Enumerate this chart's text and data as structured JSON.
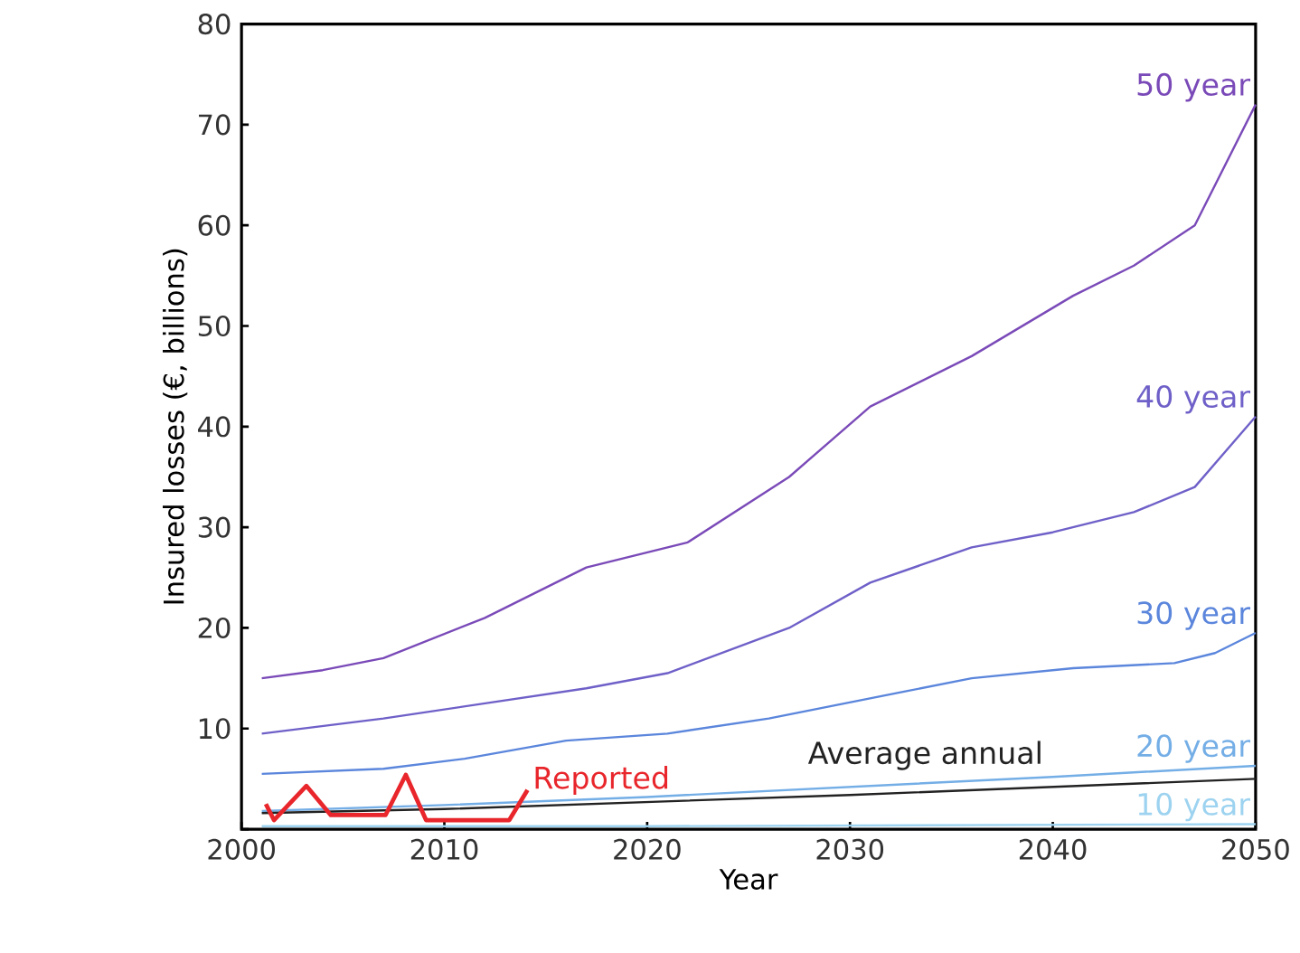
{
  "chart_data": {
    "type": "line",
    "xlabel": "Year",
    "ylabel": "Insured losses (€, billions)",
    "xlim": [
      2000,
      2050
    ],
    "xticks": [
      2000,
      2010,
      2020,
      2030,
      2040,
      2050
    ],
    "ylim": [
      0,
      80
    ],
    "yticks": [
      {
        "value": 0,
        "label": null
      },
      10,
      20,
      30,
      40,
      50,
      60,
      70,
      80
    ],
    "grid": false,
    "marker": "none",
    "line_style": "solid",
    "series": [
      {
        "name": "50 year",
        "color": "#7a4ab8",
        "x": [
          2001,
          2004,
          2007,
          2012,
          2017,
          2022,
          2027,
          2031,
          2036,
          2041,
          2044,
          2047,
          2050
        ],
        "values": [
          15,
          15.8,
          17,
          21,
          26,
          28.5,
          35,
          42,
          47,
          53,
          56,
          60,
          72
        ]
      },
      {
        "name": "40 year",
        "color": "#6e60c8",
        "x": [
          2001,
          2007,
          2012,
          2017,
          2021,
          2027,
          2031,
          2036,
          2040,
          2044,
          2047,
          2050
        ],
        "values": [
          9.5,
          11,
          12.5,
          14,
          15.5,
          20,
          24.5,
          28,
          29.5,
          31.5,
          34,
          41
        ]
      },
      {
        "name": "30 year",
        "color": "#5b86dc",
        "x": [
          2001,
          2007,
          2011,
          2016,
          2021,
          2026,
          2031,
          2036,
          2041,
          2046,
          2048,
          2050
        ],
        "values": [
          5.5,
          6,
          7,
          8.8,
          9.5,
          11,
          13,
          15,
          16,
          16.5,
          17.5,
          19.5
        ]
      },
      {
        "name": "20 year",
        "color": "#74aee6",
        "x": [
          2001,
          2010,
          2020,
          2030,
          2040,
          2050
        ],
        "values": [
          1.8,
          2.4,
          3.2,
          4.2,
          5.2,
          6.3
        ]
      },
      {
        "name": "10 year",
        "color": "#9dd3f0",
        "x": [
          2001,
          2020,
          2050
        ],
        "values": [
          0.3,
          0.3,
          0.5
        ]
      },
      {
        "name": "Average annual",
        "color": "#222222",
        "x": [
          2001,
          2010,
          2020,
          2030,
          2040,
          2050
        ],
        "values": [
          1.6,
          2.0,
          2.7,
          3.4,
          4.2,
          5.0
        ]
      },
      {
        "name": "Reported",
        "color": "#e8262b",
        "x": [
          2001.2,
          2001.6,
          2003.2,
          2004.4,
          2007.1,
          2008.1,
          2009.1,
          2013.2,
          2014.1
        ],
        "values": [
          2.5,
          0.9,
          4.3,
          1.4,
          1.4,
          5.4,
          0.9,
          0.9,
          3.9
        ]
      }
    ]
  }
}
